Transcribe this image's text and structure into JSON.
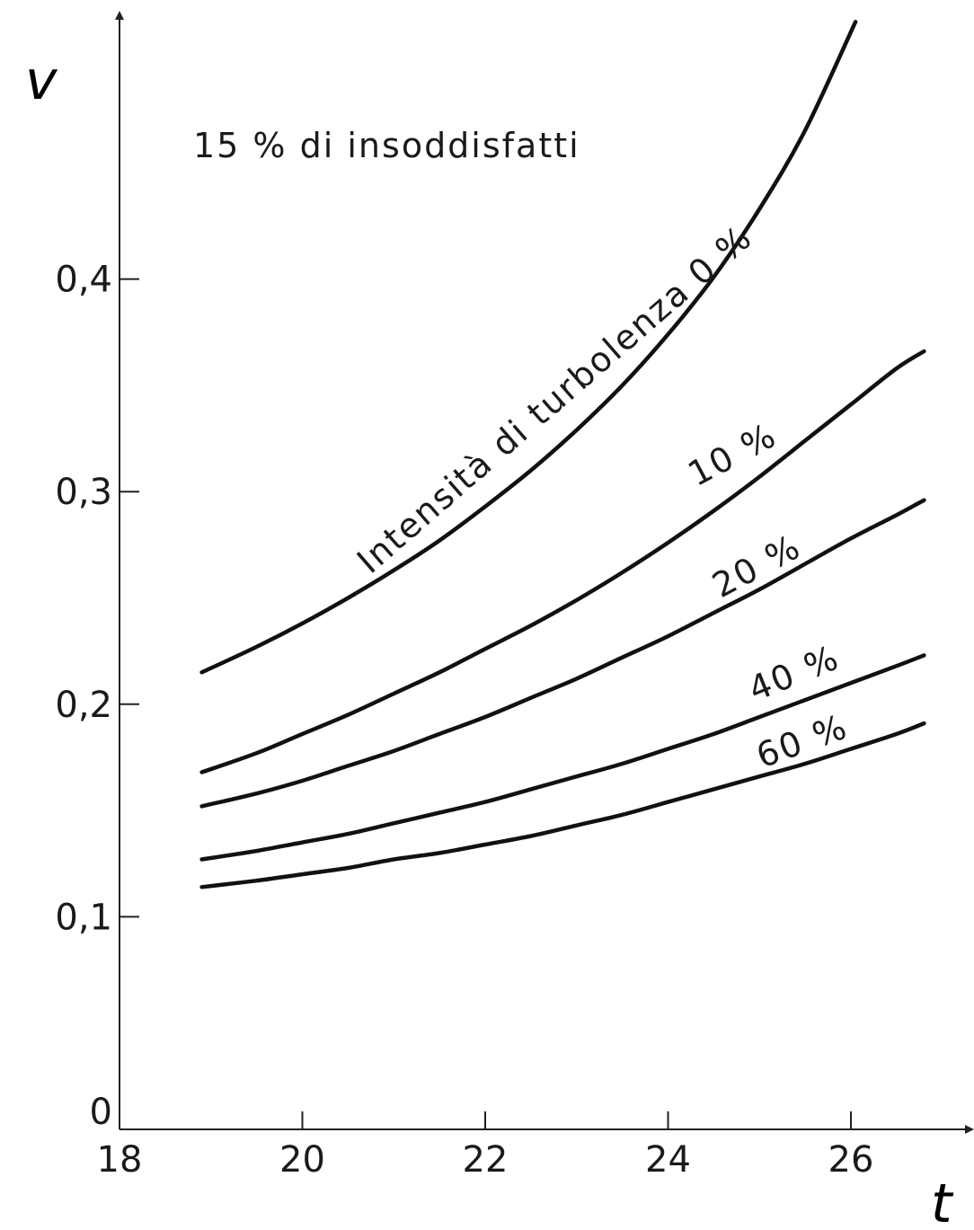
{
  "chart_data": {
    "type": "line",
    "title": "",
    "annotation": "15 % di insoddisfatti",
    "xlabel": "t",
    "ylabel": "v",
    "xlim": [
      18,
      27.3
    ],
    "ylim": [
      0,
      0.5
    ],
    "xticks": [
      {
        "value": 18,
        "label": "18"
      },
      {
        "value": 20,
        "label": "20"
      },
      {
        "value": 22,
        "label": "22"
      },
      {
        "value": 24,
        "label": "24"
      },
      {
        "value": 26,
        "label": "26"
      }
    ],
    "yticks": [
      {
        "value": 0,
        "label": "0"
      },
      {
        "value": 0.1,
        "label": "0,1"
      },
      {
        "value": 0.2,
        "label": "0,2"
      },
      {
        "value": 0.3,
        "label": "0,3"
      },
      {
        "value": 0.4,
        "label": "0,4"
      }
    ],
    "grid": false,
    "series": [
      {
        "name": "Intensità di turbolenza 0 %",
        "x": [
          18.9,
          19.5,
          20,
          20.5,
          21,
          21.5,
          22,
          22.5,
          23,
          23.5,
          24,
          24.5,
          25,
          25.5,
          26.05
        ],
        "y": [
          0.215,
          0.227,
          0.238,
          0.25,
          0.263,
          0.277,
          0.293,
          0.31,
          0.329,
          0.35,
          0.374,
          0.401,
          0.433,
          0.47,
          0.521
        ]
      },
      {
        "name": "10 %",
        "x": [
          18.9,
          19.5,
          20,
          20.5,
          21,
          21.5,
          22,
          22.5,
          23,
          23.5,
          24,
          24.5,
          25,
          25.5,
          26,
          26.5,
          26.8
        ],
        "y": [
          0.168,
          0.177,
          0.186,
          0.195,
          0.205,
          0.215,
          0.226,
          0.237,
          0.249,
          0.262,
          0.276,
          0.291,
          0.307,
          0.324,
          0.341,
          0.358,
          0.366
        ]
      },
      {
        "name": "20 %",
        "x": [
          18.9,
          19.5,
          20,
          20.5,
          21,
          21.5,
          22,
          22.5,
          23,
          23.5,
          24,
          24.5,
          25,
          25.5,
          26,
          26.5,
          26.8
        ],
        "y": [
          0.152,
          0.158,
          0.164,
          0.171,
          0.178,
          0.186,
          0.194,
          0.203,
          0.212,
          0.222,
          0.232,
          0.243,
          0.254,
          0.266,
          0.278,
          0.289,
          0.296
        ]
      },
      {
        "name": "40 %",
        "x": [
          18.9,
          19.5,
          20,
          20.5,
          21,
          21.5,
          22,
          22.5,
          23,
          23.5,
          24,
          24.5,
          25,
          25.5,
          26,
          26.5,
          26.8
        ],
        "y": [
          0.127,
          0.131,
          0.135,
          0.139,
          0.144,
          0.149,
          0.154,
          0.16,
          0.166,
          0.172,
          0.179,
          0.186,
          0.194,
          0.202,
          0.21,
          0.218,
          0.223
        ]
      },
      {
        "name": "60 %",
        "x": [
          18.9,
          19.5,
          20,
          20.5,
          21,
          21.5,
          22,
          22.5,
          23,
          23.5,
          24,
          24.5,
          25,
          25.5,
          26,
          26.5,
          26.8
        ],
        "y": [
          0.114,
          0.117,
          0.12,
          0.123,
          0.127,
          0.13,
          0.134,
          0.138,
          0.143,
          0.148,
          0.154,
          0.16,
          0.166,
          0.172,
          0.179,
          0.186,
          0.191
        ]
      }
    ]
  }
}
